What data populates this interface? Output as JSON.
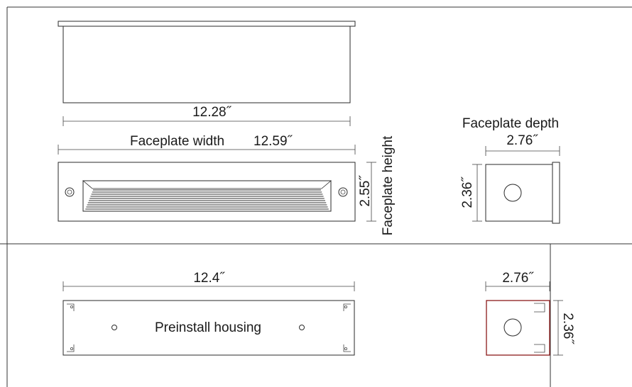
{
  "top_view": {
    "length_label": "12.28˝"
  },
  "front_view": {
    "width_label": "Faceplate width",
    "width_value": "12.59˝",
    "height_value": "2.55˝",
    "height_label": "Faceplate height"
  },
  "side_view": {
    "depth_label": "Faceplate depth",
    "depth_value": "2.76˝",
    "height_value": "2.36˝"
  },
  "housing_view": {
    "length_label": "12.4˝",
    "name": "Preinstall housing"
  },
  "housing_side_view": {
    "depth_value": "2.76˝",
    "height_value": "2.36˝"
  },
  "colors": {
    "line": "#2a2a2a",
    "housing_outline": "#8b1a1a"
  }
}
